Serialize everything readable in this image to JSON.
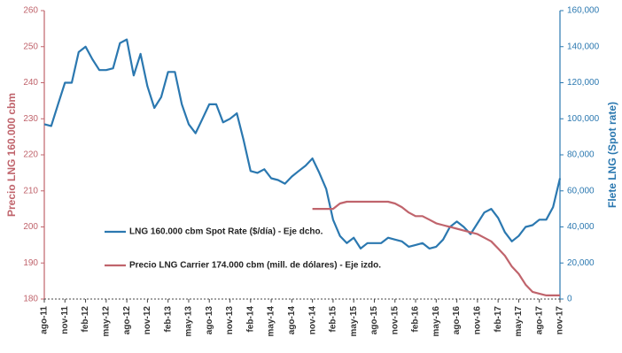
{
  "chart_data": {
    "type": "line",
    "categories": [
      "ago-11",
      null,
      null,
      "nov-11",
      null,
      null,
      "feb-12",
      null,
      null,
      "may-12",
      null,
      null,
      "ago-12",
      null,
      null,
      "nov-12",
      null,
      null,
      "feb-13",
      null,
      null,
      "may-13",
      null,
      null,
      "ago-13",
      null,
      null,
      "nov-13",
      null,
      null,
      "feb-14",
      null,
      null,
      "may-14",
      null,
      null,
      "ago-14",
      null,
      null,
      "nov-14",
      null,
      null,
      "feb-15",
      null,
      null,
      "may-15",
      null,
      null,
      "ago-15",
      null,
      null,
      "nov-15",
      null,
      null,
      "feb-16",
      null,
      null,
      "may-16",
      null,
      null,
      "ago-16",
      null,
      null,
      "nov-16",
      null,
      null,
      "feb-17",
      null,
      null,
      "may-17",
      null,
      null,
      "ago-17",
      null,
      null,
      "nov-17"
    ],
    "series": [
      {
        "name": "LNG 160.000 cbm Spot Rate ($/día) - Eje dcho.",
        "color": "#2b78b0",
        "axis": "y2",
        "values": [
          97000,
          96000,
          108000,
          120000,
          120000,
          137000,
          140000,
          133000,
          127000,
          127000,
          128000,
          142000,
          144000,
          124000,
          136000,
          118000,
          106000,
          112000,
          126000,
          126000,
          108000,
          97000,
          92000,
          100000,
          108000,
          108000,
          98000,
          100000,
          103000,
          88000,
          71000,
          70000,
          72000,
          67000,
          66000,
          64000,
          68000,
          71000,
          74000,
          78000,
          70000,
          61000,
          44000,
          35000,
          31000,
          34000,
          28000,
          31000,
          31000,
          31000,
          34000,
          33000,
          32000,
          29000,
          30000,
          31000,
          28000,
          29000,
          33000,
          40000,
          43000,
          40000,
          36000,
          42000,
          48000,
          50000,
          45000,
          37000,
          32000,
          35000,
          40000,
          41000,
          44000,
          44000,
          51000,
          67000
        ]
      },
      {
        "name": "Precio LNG Carrier 174.000 cbm (mill. de dólares) - Eje izdo.",
        "color": "#c0646c",
        "values": [
          null,
          null,
          null,
          null,
          null,
          null,
          null,
          null,
          null,
          null,
          null,
          null,
          null,
          null,
          null,
          null,
          null,
          null,
          null,
          null,
          null,
          null,
          null,
          null,
          null,
          null,
          null,
          null,
          null,
          null,
          null,
          null,
          null,
          null,
          null,
          null,
          null,
          null,
          null,
          205,
          205,
          205,
          205,
          206.5,
          207,
          207,
          207,
          207,
          207,
          207,
          207,
          206.5,
          205.5,
          204,
          203,
          203,
          202,
          201,
          200.5,
          200,
          199.5,
          199,
          198.5,
          198,
          197,
          196,
          194,
          192,
          189,
          187,
          184,
          182,
          181.5,
          181,
          181,
          181
        ]
      }
    ],
    "y_label": "Precio LNG 160.000 cbm",
    "y2_label": "Flete LNG (Spot rate)",
    "ylim": [
      180,
      260
    ],
    "yticks": [
      180,
      190,
      200,
      210,
      220,
      230,
      240,
      250,
      260
    ],
    "y2lim": [
      0,
      160000
    ],
    "y2ticks": [
      0,
      {
        "value": 20000,
        "label": "20,000"
      },
      {
        "value": 40000,
        "label": "40,000"
      },
      {
        "value": 60000,
        "label": "60,000"
      },
      {
        "value": 80000,
        "label": "80,000"
      },
      {
        "value": 100000,
        "label": "100,000"
      },
      {
        "value": 120000,
        "label": "120,000"
      },
      {
        "value": 140000,
        "label": "140,000"
      },
      {
        "value": 160000,
        "label": "160,000"
      }
    ],
    "y_color": "#c0646c",
    "y2_color": "#2b78b0",
    "grid": false
  }
}
